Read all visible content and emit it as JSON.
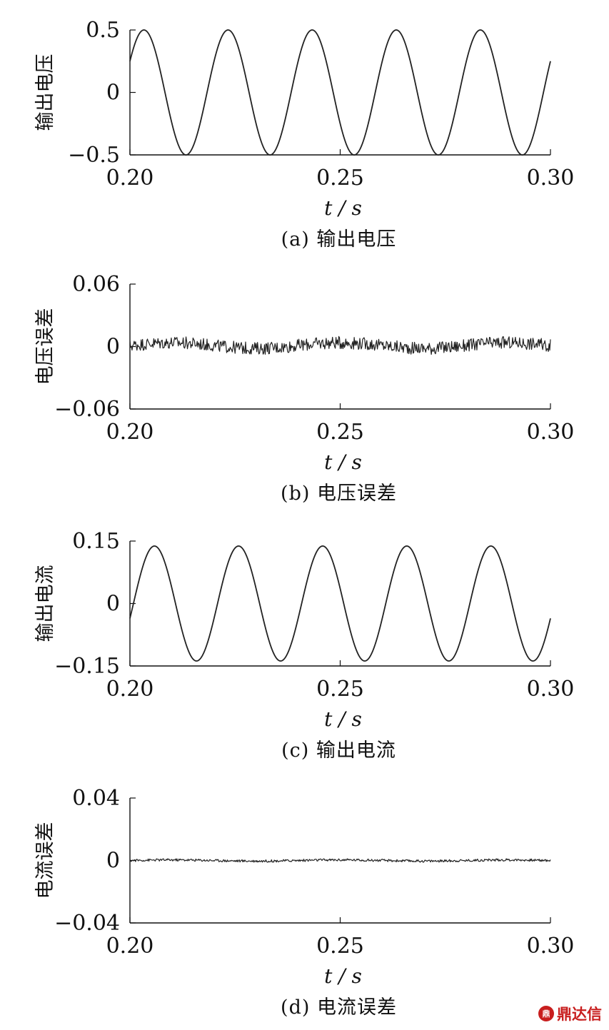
{
  "chart_data": [
    {
      "type": "line",
      "panel": "a",
      "caption": "(a) 输出电压",
      "ylabel": "输出电压",
      "xlabel": "t / s",
      "xlim": [
        0.2,
        0.3
      ],
      "ylim": [
        -0.5,
        0.5
      ],
      "xticks": [
        "0.20",
        "0.25",
        "0.30"
      ],
      "yticks": [
        "0.5",
        "0",
        "−0.5"
      ],
      "series": [
        {
          "amplitude": 0.5,
          "frequency_hz": 50,
          "phase_deg": 30,
          "x": [
            0.2,
            0.2017,
            0.2033,
            0.2117,
            0.2133,
            0.2217,
            0.2233,
            0.2317,
            0.2333,
            0.2417,
            0.2433,
            0.2517,
            0.2533,
            0.2617,
            0.2633,
            0.2717,
            0.2733,
            0.2817,
            0.2833,
            0.2917,
            0.2933,
            0.3
          ],
          "y": [
            0.25,
            0.43,
            0.5,
            -0.43,
            -0.5,
            0.43,
            0.5,
            -0.43,
            -0.5,
            0.43,
            0.5,
            -0.43,
            -0.5,
            0.43,
            0.5,
            -0.43,
            -0.5,
            0.43,
            0.5,
            -0.43,
            -0.5,
            0.25
          ]
        }
      ]
    },
    {
      "type": "line",
      "panel": "b",
      "caption": "(b) 电压误差",
      "ylabel": "电压误差",
      "xlabel": "t / s",
      "xlim": [
        0.2,
        0.3
      ],
      "ylim": [
        -0.06,
        0.06
      ],
      "xticks": [
        "0.20",
        "0.25",
        "0.30"
      ],
      "yticks": [
        "0.06",
        "0",
        "−0.06"
      ],
      "series": [
        {
          "noise_amplitude": 0.006,
          "mean": 0.001
        }
      ]
    },
    {
      "type": "line",
      "panel": "c",
      "caption": "(c) 输出电流",
      "ylabel": "输出电流",
      "xlabel": "t / s",
      "xlim": [
        0.2,
        0.3
      ],
      "ylim": [
        -0.15,
        0.15
      ],
      "xticks": [
        "0.20",
        "0.25",
        "0.30"
      ],
      "yticks": [
        "0.15",
        "0",
        "−0.15"
      ],
      "series": [
        {
          "amplitude": 0.138,
          "frequency_hz": 50,
          "phase_deg": -15,
          "x": [
            0.2,
            0.2058,
            0.2158,
            0.2258,
            0.2358,
            0.2458,
            0.2558,
            0.2658,
            0.2758,
            0.2858,
            0.2958,
            0.3
          ],
          "y": [
            -0.036,
            0.138,
            -0.138,
            0.138,
            -0.138,
            0.138,
            -0.138,
            0.138,
            -0.138,
            0.138,
            -0.138,
            -0.036
          ]
        }
      ]
    },
    {
      "type": "line",
      "panel": "d",
      "caption": "(d) 电流误差",
      "ylabel": "电流误差",
      "xlabel": "t / s",
      "xlim": [
        0.2,
        0.3
      ],
      "ylim": [
        -0.04,
        0.04
      ],
      "xticks": [
        "0.20",
        "0.25",
        "0.30"
      ],
      "yticks": [
        "0.04",
        "0",
        "−0.04"
      ],
      "series": [
        {
          "noise_amplitude": 0.0008,
          "mean": 0.0
        }
      ]
    }
  ],
  "watermark": {
    "logo_text": "鼎",
    "text": "鼎达信"
  },
  "colors": {
    "line": "#222222",
    "axis": "#111111",
    "watermark": "#c81e1e"
  }
}
